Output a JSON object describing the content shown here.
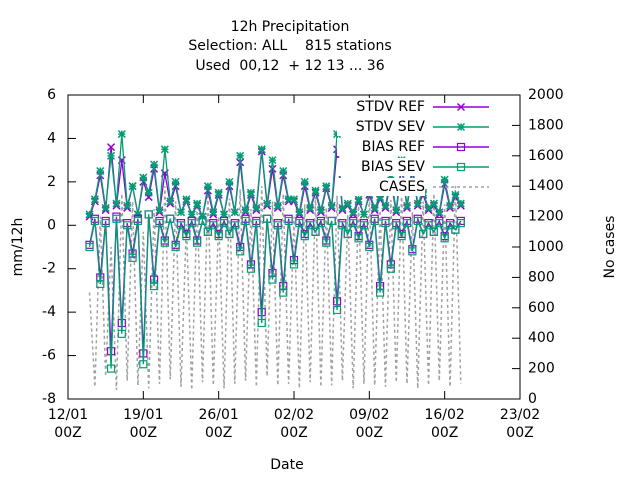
{
  "chart_data": {
    "type": "line",
    "title": "12h Precipitation",
    "subtitle": [
      "Selection: ALL    815 stations",
      "Used  00,12  + 12 13 ... 36"
    ],
    "xlabel": "Date",
    "ylabel": "mm/12h",
    "y2label": "No cases",
    "x": [
      "14/01 00Z",
      "14/01 12Z",
      "15/01 00Z",
      "15/01 12Z",
      "16/01 00Z",
      "16/01 12Z",
      "17/01 00Z",
      "17/01 12Z",
      "18/01 00Z",
      "18/01 12Z",
      "19/01 00Z",
      "19/01 12Z",
      "20/01 00Z",
      "20/01 12Z",
      "21/01 00Z",
      "21/01 12Z",
      "22/01 00Z",
      "22/01 12Z",
      "23/01 00Z",
      "23/01 12Z",
      "24/01 00Z",
      "24/01 12Z",
      "25/01 00Z",
      "25/01 12Z",
      "26/01 00Z",
      "26/01 12Z",
      "27/01 00Z",
      "27/01 12Z",
      "28/01 00Z",
      "28/01 12Z",
      "29/01 00Z",
      "29/01 12Z",
      "30/01 00Z",
      "30/01 12Z",
      "31/01 00Z",
      "31/01 12Z",
      "01/02 00Z",
      "01/02 12Z",
      "02/02 00Z",
      "02/02 12Z",
      "03/02 00Z",
      "03/02 12Z",
      "04/02 00Z",
      "04/02 12Z",
      "05/02 00Z",
      "05/02 12Z",
      "06/02 00Z",
      "06/02 12Z",
      "07/02 00Z",
      "07/02 12Z",
      "08/02 00Z",
      "08/02 12Z",
      "09/02 00Z",
      "09/02 12Z",
      "10/02 00Z",
      "10/02 12Z",
      "11/02 00Z",
      "11/02 12Z",
      "12/02 00Z",
      "12/02 12Z",
      "13/02 00Z",
      "13/02 12Z",
      "14/02 00Z",
      "14/02 12Z",
      "15/02 00Z",
      "15/02 12Z",
      "16/02 00Z",
      "16/02 12Z",
      "17/02 00Z",
      "17/02 12Z"
    ],
    "series": [
      {
        "name": "STDV REF",
        "color": "#9400d3",
        "marker": "cross",
        "axis": "y",
        "values": [
          0.4,
          1.1,
          2.3,
          0.7,
          3.6,
          0.9,
          3.0,
          0.8,
          1.8,
          0.5,
          2.0,
          1.3,
          2.6,
          0.6,
          2.4,
          1.0,
          1.8,
          0.6,
          1.1,
          0.5,
          0.9,
          0.4,
          1.6,
          0.5,
          1.4,
          0.5,
          1.8,
          0.6,
          2.9,
          0.6,
          1.4,
          0.7,
          3.4,
          0.9,
          2.6,
          0.8,
          2.3,
          1.1,
          1.1,
          0.5,
          1.8,
          0.7,
          1.5,
          0.6,
          1.7,
          0.8,
          3.5,
          0.7,
          0.9,
          0.5,
          1.1,
          0.5,
          1.4,
          0.7,
          1.2,
          0.8,
          2.0,
          0.6,
          2.7,
          0.8,
          2.5,
          0.9,
          1.4,
          0.7,
          0.9,
          0.5,
          1.9,
          0.8,
          1.3,
          0.9
        ]
      },
      {
        "name": "STDV SEV",
        "color": "#009e73",
        "marker": "star",
        "axis": "y",
        "values": [
          0.5,
          1.2,
          2.5,
          0.8,
          3.2,
          1.0,
          4.2,
          0.9,
          1.8,
          0.5,
          2.2,
          1.5,
          2.8,
          0.7,
          3.5,
          1.1,
          2.0,
          0.6,
          1.2,
          0.5,
          1.0,
          0.4,
          1.8,
          0.6,
          1.5,
          0.5,
          2.0,
          0.6,
          3.2,
          0.7,
          1.5,
          0.8,
          3.5,
          1.0,
          3.0,
          0.9,
          2.5,
          1.2,
          1.2,
          0.6,
          2.0,
          0.8,
          1.6,
          0.7,
          1.8,
          0.9,
          4.2,
          0.8,
          1.0,
          0.6,
          1.2,
          0.5,
          1.5,
          0.8,
          1.3,
          0.9,
          2.2,
          0.7,
          3.0,
          0.9,
          2.8,
          1.0,
          1.5,
          0.8,
          1.0,
          0.6,
          2.1,
          0.9,
          1.4,
          1.0
        ]
      },
      {
        "name": "BIAS REF",
        "color": "#9400d3",
        "marker": "square",
        "axis": "y",
        "values": [
          -0.9,
          0.3,
          -2.4,
          0.2,
          -5.8,
          0.4,
          -4.5,
          0.1,
          -1.3,
          0.3,
          -5.9,
          0.5,
          -2.5,
          0.2,
          -0.7,
          0.3,
          -0.9,
          0.1,
          -0.4,
          0.2,
          -0.7,
          0.2,
          -0.3,
          0.1,
          -0.4,
          0.2,
          -0.4,
          0.1,
          -1.0,
          0.3,
          -1.8,
          0.2,
          -4.0,
          0.3,
          -2.2,
          0.1,
          -2.8,
          0.3,
          -1.6,
          0.2,
          -0.4,
          0.1,
          -0.3,
          0.2,
          -0.7,
          0.2,
          -3.5,
          0.1,
          -0.4,
          0.2,
          -0.5,
          0.1,
          -0.9,
          0.3,
          -2.8,
          0.2,
          -1.8,
          0.1,
          -0.4,
          0.2,
          -1.1,
          0.3,
          -0.4,
          0.1,
          -0.3,
          0.2,
          -0.5,
          0.1,
          -0.2,
          0.2
        ]
      },
      {
        "name": "BIAS SEV",
        "color": "#009e73",
        "marker": "square",
        "axis": "y",
        "values": [
          -1.0,
          0.2,
          -2.7,
          0.1,
          -6.6,
          0.3,
          -5.0,
          0.0,
          -1.5,
          0.2,
          -6.4,
          0.5,
          -2.8,
          0.1,
          -0.8,
          0.3,
          -1.0,
          0.0,
          -0.5,
          0.1,
          -0.8,
          0.2,
          -0.3,
          0.0,
          -0.5,
          0.1,
          -0.4,
          0.0,
          -1.2,
          0.2,
          -2.0,
          0.1,
          -4.5,
          0.3,
          -2.5,
          0.0,
          -3.1,
          0.2,
          -1.8,
          0.1,
          -0.5,
          0.0,
          -0.3,
          0.1,
          -0.8,
          0.2,
          -3.9,
          0.0,
          -0.4,
          0.1,
          -0.6,
          0.0,
          -1.0,
          0.2,
          -3.1,
          0.1,
          -2.0,
          0.0,
          -0.5,
          0.1,
          -1.2,
          0.2,
          -0.4,
          0.0,
          -0.3,
          0.1,
          -0.6,
          0.0,
          -0.2,
          0.1
        ]
      },
      {
        "name": "CASES",
        "color": "#a0a0a0",
        "marker": "none",
        "dashed": true,
        "axis": "y2",
        "values": [
          700,
          80,
          1200,
          150,
          1000,
          60,
          1350,
          120,
          1300,
          90,
          1100,
          70,
          1250,
          100,
          1400,
          130,
          1300,
          80,
          1150,
          60,
          1280,
          110,
          1350,
          90,
          1200,
          70,
          1320,
          100,
          1380,
          120,
          1250,
          80,
          1400,
          150,
          1300,
          90,
          1350,
          100,
          1200,
          70,
          1280,
          110,
          1330,
          80,
          1260,
          90,
          1340,
          120,
          1210,
          70,
          1290,
          100,
          1360,
          90,
          1240,
          80,
          1310,
          110,
          1370,
          100,
          1230,
          70,
          1300,
          90,
          1350,
          120,
          1280,
          80,
          1400,
          100
        ]
      }
    ],
    "xlim": [
      "12/01 00Z",
      "23/02 00Z"
    ],
    "xticks": [
      "12/01\n00Z",
      "19/01\n00Z",
      "26/01\n00Z",
      "02/02\n00Z",
      "09/02\n00Z",
      "16/02\n00Z",
      "23/02\n00Z"
    ],
    "ylim": [
      -8,
      6
    ],
    "yticks": [
      -8,
      -6,
      -4,
      -2,
      0,
      2,
      4,
      6
    ],
    "y2lim": [
      0,
      2000
    ],
    "y2ticks": [
      0,
      200,
      400,
      600,
      800,
      1000,
      1200,
      1400,
      1600,
      1800,
      2000
    ],
    "legend": "top-right"
  }
}
